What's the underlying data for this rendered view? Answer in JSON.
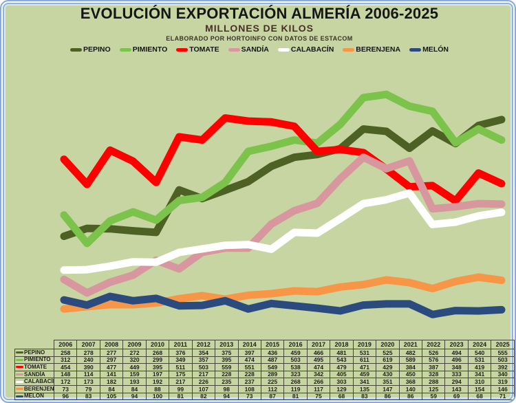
{
  "header": {
    "title": "EVOLUCIÓN EXPORTACIÓN ALMERÍA 2006-2025",
    "subtitle": "MILLONES DE KILOS",
    "credit": "ELABORADO POR HORTOINFO CON DATOS DE ESTACOM"
  },
  "colors": {
    "background": "#c6d5a1",
    "frame_blue": "#85abdb",
    "title_text": "#161616",
    "subtitle_text": "#4a2e28",
    "table_border": "#45453a"
  },
  "chart_data": {
    "type": "line",
    "title": "EVOLUCIÓN EXPORTACIÓN ALMERÍA 2006-2025",
    "subtitle": "MILLONES DE KILOS",
    "x": [
      2006,
      2007,
      2008,
      2009,
      2010,
      2011,
      2012,
      2013,
      2014,
      2015,
      2016,
      2017,
      2018,
      2019,
      2020,
      2021,
      2022,
      2023,
      2024,
      2025
    ],
    "ylim": [
      0,
      700
    ],
    "grid": false,
    "axes_visible": false,
    "legend_position": "top",
    "series": [
      {
        "name": "PEPINO",
        "color": "#4e6125",
        "values": [
          258,
          278,
          277,
          272,
          268,
          376,
          354,
          375,
          397,
          436,
          459,
          466,
          481,
          531,
          525,
          482,
          526,
          494,
          540,
          555
        ]
      },
      {
        "name": "PIMIENTO",
        "color": "#7cc34b",
        "values": [
          312,
          240,
          297,
          320,
          299,
          349,
          357,
          395,
          474,
          487,
          503,
          495,
          543,
          611,
          619,
          589,
          576,
          496,
          531,
          503
        ]
      },
      {
        "name": "TOMATE",
        "color": "#ff0000",
        "values": [
          454,
          390,
          477,
          449,
          395,
          511,
          503,
          559,
          551,
          549,
          538,
          474,
          479,
          471,
          429,
          384,
          387,
          348,
          419,
          392
        ]
      },
      {
        "name": "SANDÍA",
        "color": "#d8979e",
        "values": [
          148,
          114,
          141,
          159,
          197,
          175,
          217,
          228,
          228,
          289,
          323,
          342,
          405,
          459,
          430,
          450,
          328,
          333,
          341,
          340
        ]
      },
      {
        "name": "CALABACÍN",
        "color": "#ffffff",
        "values": [
          172,
          173,
          182,
          193,
          192,
          217,
          226,
          235,
          237,
          225,
          268,
          266,
          303,
          341,
          351,
          368,
          288,
          294,
          310,
          319
        ]
      },
      {
        "name": "BERENJENA",
        "color": "#f79646",
        "values": [
          73,
          79,
          84,
          84,
          88,
          99,
          107,
          98,
          108,
          112,
          119,
          117,
          129,
          135,
          147,
          140,
          125,
          143,
          154,
          146
        ]
      },
      {
        "name": "MELÓN",
        "color": "#2b4b7e",
        "values": [
          96,
          83,
          105,
          94,
          100,
          81,
          82,
          94,
          73,
          87,
          81,
          75,
          68,
          83,
          86,
          86,
          59,
          69,
          68,
          71
        ]
      }
    ]
  }
}
